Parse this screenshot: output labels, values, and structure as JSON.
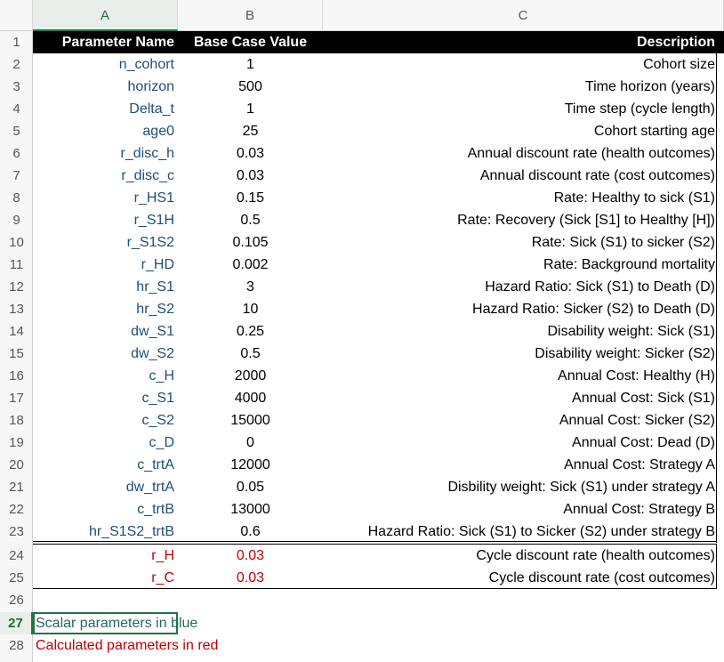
{
  "columns": [
    "A",
    "B",
    "C"
  ],
  "row_numbers": [
    "1",
    "2",
    "3",
    "4",
    "5",
    "6",
    "7",
    "8",
    "9",
    "10",
    "11",
    "12",
    "13",
    "14",
    "15",
    "16",
    "17",
    "18",
    "19",
    "20",
    "21",
    "22",
    "23",
    "24",
    "25",
    "26",
    "27",
    "28"
  ],
  "header": {
    "name": "Parameter Name",
    "value": "Base Case Value",
    "description": "Description"
  },
  "params": [
    {
      "name": "n_cohort",
      "value": "1",
      "description": "Cohort size"
    },
    {
      "name": "horizon",
      "value": "500",
      "description": "Time horizon (years)"
    },
    {
      "name": "Delta_t",
      "value": "1",
      "description": "Time step (cycle length)"
    },
    {
      "name": "age0",
      "value": "25",
      "description": "Cohort starting age"
    },
    {
      "name": "r_disc_h",
      "value": "0.03",
      "description": "Annual discount rate (health outcomes)"
    },
    {
      "name": "r_disc_c",
      "value": "0.03",
      "description": "Annual discount rate (cost outcomes)"
    },
    {
      "name": "r_HS1",
      "value": "0.15",
      "description": "Rate: Healthy to sick (S1)"
    },
    {
      "name": "r_S1H",
      "value": "0.5",
      "description": "Rate: Recovery (Sick [S1] to Healthy [H])"
    },
    {
      "name": "r_S1S2",
      "value": "0.105",
      "description": "Rate: Sick (S1) to sicker (S2)"
    },
    {
      "name": "r_HD",
      "value": "0.002",
      "description": "Rate: Background mortality"
    },
    {
      "name": "hr_S1",
      "value": "3",
      "description": "Hazard Ratio: Sick (S1) to Death (D)"
    },
    {
      "name": "hr_S2",
      "value": "10",
      "description": "Hazard Ratio: Sicker (S2) to Death (D)"
    },
    {
      "name": "dw_S1",
      "value": "0.25",
      "description": "Disability weight: Sick (S1)"
    },
    {
      "name": "dw_S2",
      "value": "0.5",
      "description": "Disability weight: Sicker (S2)"
    },
    {
      "name": "c_H",
      "value": "2000",
      "description": "Annual Cost: Healthy (H)"
    },
    {
      "name": "c_S1",
      "value": "4000",
      "description": "Annual Cost: Sick (S1)"
    },
    {
      "name": "c_S2",
      "value": "15000",
      "description": "Annual Cost: Sicker (S2)"
    },
    {
      "name": "c_D",
      "value": "0",
      "description": "Annual Cost: Dead (D)"
    },
    {
      "name": "c_trtA",
      "value": "12000",
      "description": "Annual Cost: Strategy A"
    },
    {
      "name": "dw_trtA",
      "value": "0.05",
      "description": "Disbility weight: Sick (S1) under strategy A"
    },
    {
      "name": "c_trtB",
      "value": "13000",
      "description": "Annual Cost: Strategy B"
    },
    {
      "name": "hr_S1S2_trtB",
      "value": "0.6",
      "description": "Hazard Ratio: Sick (S1) to Sicker (S2) under strategy B"
    }
  ],
  "calculated": [
    {
      "name": "r_H",
      "value": "0.03",
      "description": "Cycle discount rate (health outcomes)"
    },
    {
      "name": "r_C",
      "value": "0.03",
      "description": "Cycle discount rate (cost outcomes)"
    }
  ],
  "notes": {
    "blue": "Scalar parameters in blue",
    "red": "Calculated parameters in red"
  },
  "colors": {
    "scalar": "#1f4e79",
    "calculated": "#c00000",
    "selection": "#217346"
  }
}
